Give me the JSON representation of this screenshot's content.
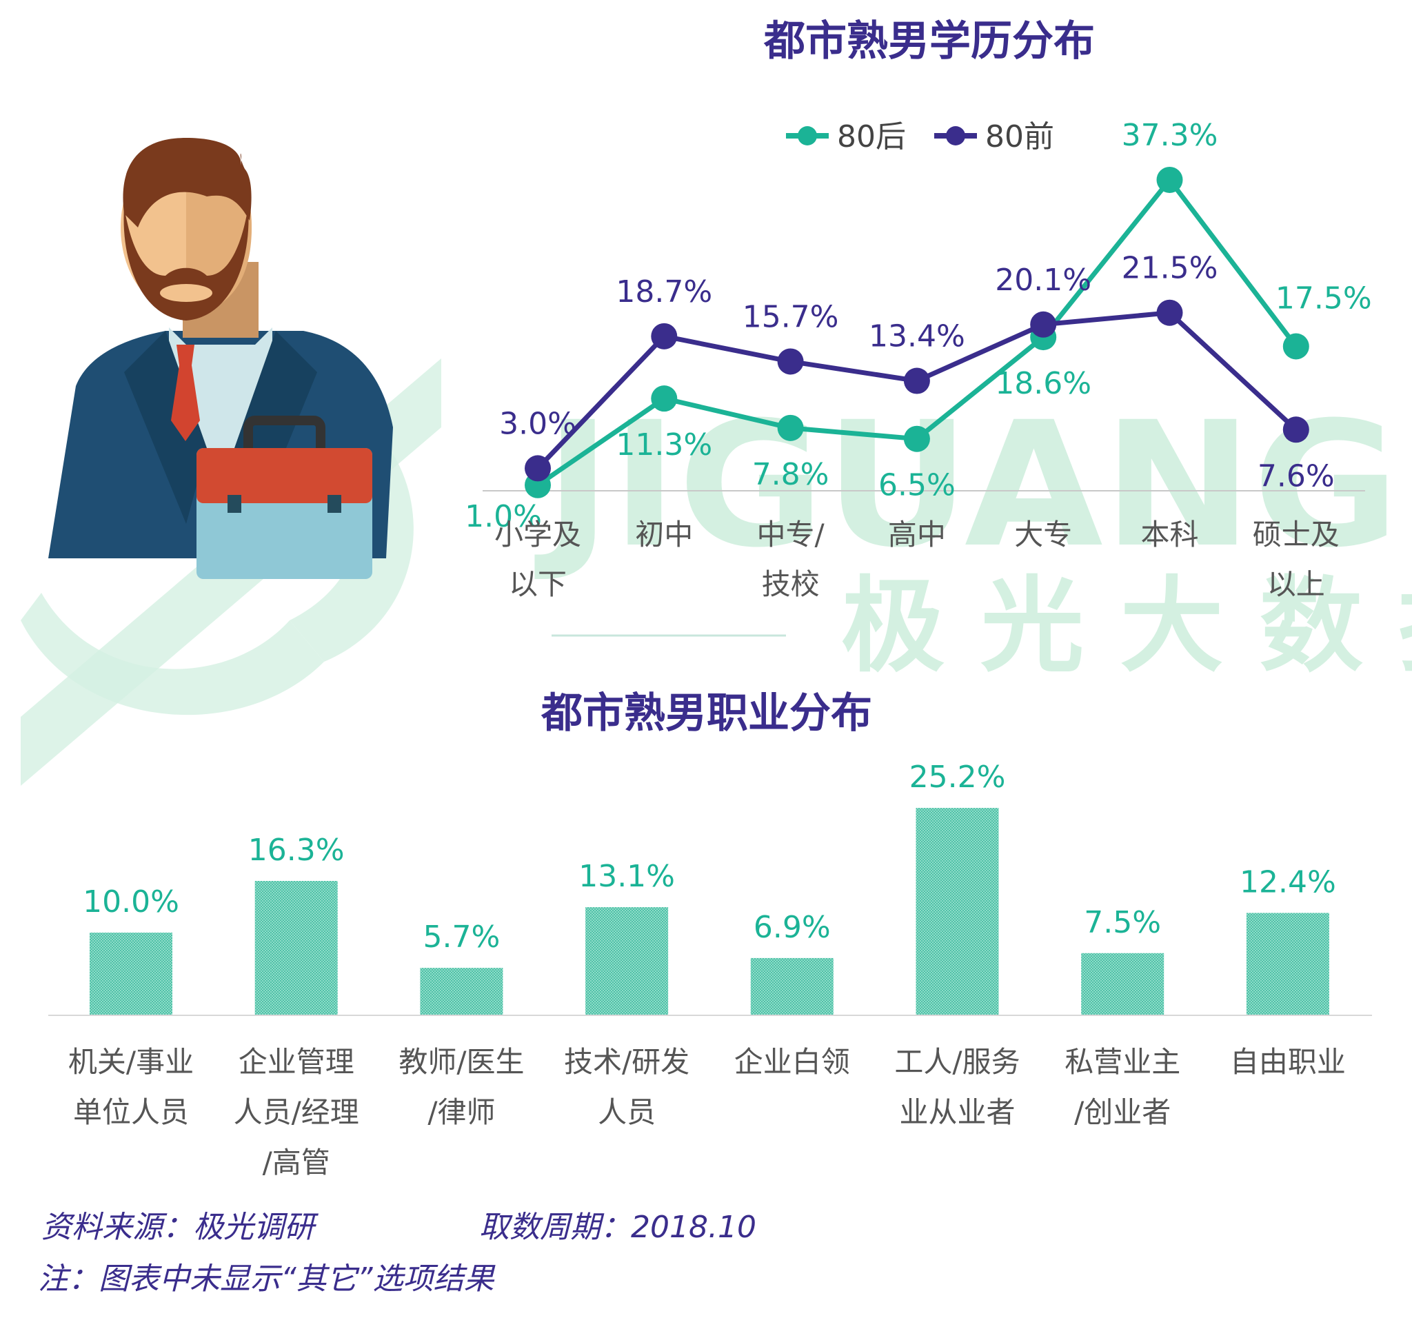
{
  "colors": {
    "teal": "#1bb396",
    "purple": "#3a2d8c",
    "bar": "#5cc9b1",
    "watermark": "#c8ecd9"
  },
  "watermark": {
    "brand": "JIGUANG",
    "brand_cn": "极 光 大 数 据"
  },
  "illustration": "businessman-with-briefcase",
  "chart_data": [
    {
      "type": "line",
      "title": "都市熟男学历分布",
      "categories": [
        [
          "小学及",
          "以下"
        ],
        [
          "初中"
        ],
        [
          "中专/",
          "技校"
        ],
        [
          "高中"
        ],
        [
          "大专"
        ],
        [
          "本科"
        ],
        [
          "硕士及",
          "以上"
        ]
      ],
      "legend": "top",
      "series": [
        {
          "name": "80后",
          "color": "#1bb396",
          "values": [
            1.0,
            11.3,
            7.8,
            6.5,
            18.6,
            37.3,
            17.5
          ],
          "labels": [
            "1.0%",
            "11.3%",
            "7.8%",
            "6.5%",
            "18.6%",
            "37.3%",
            "17.5%"
          ]
        },
        {
          "name": "80前",
          "color": "#3a2d8c",
          "values": [
            3.0,
            18.7,
            15.7,
            13.4,
            20.1,
            21.5,
            7.6
          ],
          "labels": [
            "3.0%",
            "18.7%",
            "15.7%",
            "13.4%",
            "20.1%",
            "21.5%",
            "7.6%"
          ]
        }
      ],
      "ylim": [
        0,
        45
      ],
      "grid": false
    },
    {
      "type": "bar",
      "title": "都市熟男职业分布",
      "categories": [
        [
          "机关/事业",
          "单位人员"
        ],
        [
          "企业管理",
          "人员/经理",
          "/高管"
        ],
        [
          "教师/医生",
          "/律师"
        ],
        [
          "技术/研发",
          "人员"
        ],
        [
          "企业白领"
        ],
        [
          "工人/服务",
          "业从业者"
        ],
        [
          "私营业主",
          "/创业者"
        ],
        [
          "自由职业"
        ]
      ],
      "values": [
        10.0,
        16.3,
        5.7,
        13.1,
        6.9,
        25.2,
        7.5,
        12.4
      ],
      "labels": [
        "10.0%",
        "16.3%",
        "5.7%",
        "13.1%",
        "6.9%",
        "25.2%",
        "7.5%",
        "12.4%"
      ],
      "ylim": [
        0,
        30
      ],
      "grid": false
    }
  ],
  "footer": {
    "source": "资料来源：极光调研",
    "period": "取数周期：2018.10",
    "note": "注：图表中未显示“其它”选项结果"
  }
}
